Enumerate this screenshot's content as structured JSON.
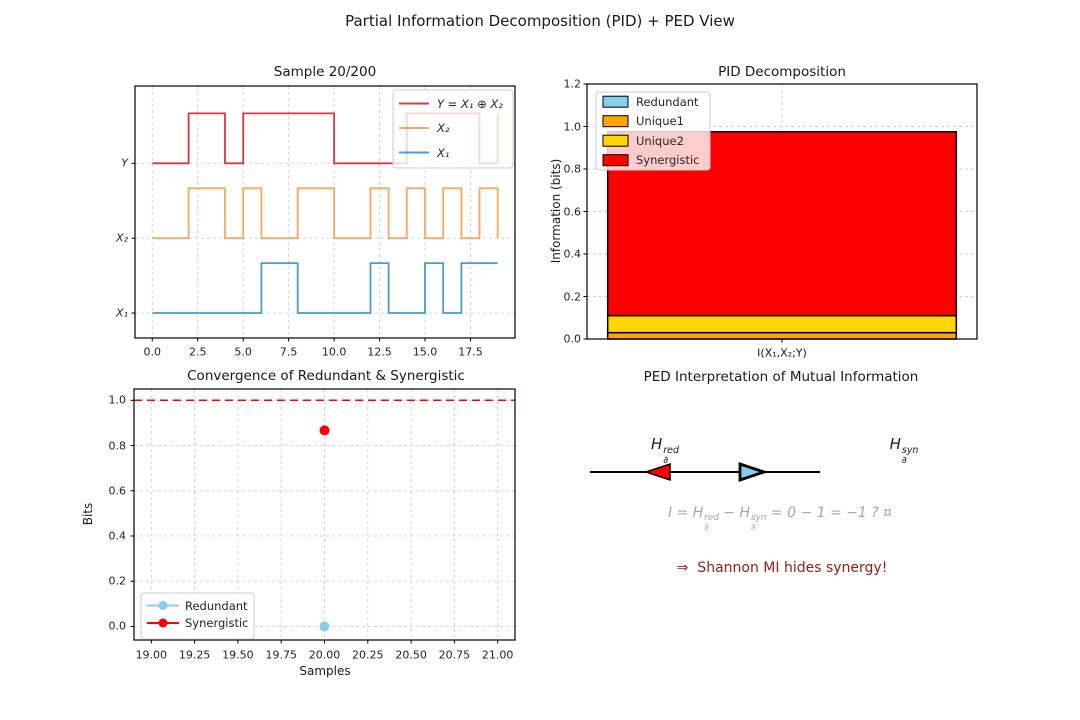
{
  "suptitle": "Partial Information Decomposition (PID) + PED View",
  "colors": {
    "x1_line": "#4c9bce",
    "x2_line": "#fba85e",
    "y_line": "#d6393f",
    "redundant": "#87ceeb",
    "unique1": "#ffa500",
    "unique2": "#ffd700",
    "synergistic": "#ff0000",
    "target_line": "#ff0000",
    "grid": "#cfcfcf",
    "axes_edge": "#000000",
    "formula_text": "#a6a6a6",
    "conclusion_text": "#9b1b1b",
    "arrow_line": "#000000"
  },
  "chart_data": [
    {
      "type": "line",
      "subtype": "step-post",
      "title": "Sample 20/200",
      "x": [
        0,
        1,
        2,
        3,
        4,
        5,
        6,
        7,
        8,
        9,
        10,
        11,
        12,
        13,
        14,
        15,
        16,
        17,
        18,
        19
      ],
      "series": [
        {
          "name": "X₁",
          "color": "#4c9bce",
          "offset": 0.0,
          "values": [
            0,
            0,
            0,
            0,
            0,
            0,
            1,
            1,
            0,
            0,
            0,
            0,
            1,
            0,
            0,
            1,
            0,
            1,
            1,
            1
          ]
        },
        {
          "name": "X₂",
          "color": "#fba85e",
          "offset": 1.5,
          "values": [
            0,
            0,
            1,
            1,
            0,
            1,
            0,
            0,
            1,
            1,
            0,
            0,
            1,
            0,
            1,
            0,
            1,
            0,
            1,
            0
          ]
        },
        {
          "name": "Y = X₁ ⊕ X₂",
          "color": "#d6393f",
          "offset": 3.0,
          "values": [
            0,
            0,
            1,
            1,
            0,
            1,
            1,
            1,
            1,
            1,
            0,
            0,
            0,
            0,
            1,
            1,
            1,
            1,
            0,
            1
          ]
        }
      ],
      "amplitude": 1.0,
      "xlim": [
        -0.95,
        19.95
      ],
      "ylim": [
        -0.5,
        4.55
      ],
      "xticks": [
        0,
        2.5,
        5,
        7.5,
        10,
        12.5,
        15,
        17.5
      ],
      "xtick_labels": [
        "0.0",
        "2.5",
        "5.0",
        "7.5",
        "10.0",
        "12.5",
        "15.0",
        "17.5"
      ],
      "ytick_positions": [
        3.0,
        1.5,
        0.0
      ],
      "ytick_labels": [
        "Y",
        "X₂",
        "X₁"
      ],
      "grid": true,
      "legend_position": "upper right"
    },
    {
      "type": "bar",
      "stacked": true,
      "title": "PID Decomposition",
      "categories": [
        "I(X₁,X₂;Y)"
      ],
      "series": [
        {
          "name": "Redundant",
          "color": "#87ceeb",
          "value": 0.0
        },
        {
          "name": "Unique1",
          "color": "#ffa500",
          "value": 0.03
        },
        {
          "name": "Unique2",
          "color": "#ffd700",
          "value": 0.08
        },
        {
          "name": "Synergistic",
          "color": "#ff0000",
          "value": 0.865
        }
      ],
      "ylabel": "Information (bits)",
      "ylim": [
        0,
        1.2
      ],
      "yticks": [
        0,
        0.2,
        0.4,
        0.6,
        0.8,
        1.0,
        1.2
      ],
      "ytick_labels": [
        "0.0",
        "0.2",
        "0.4",
        "0.6",
        "0.8",
        "1.0",
        "1.2"
      ],
      "grid": true,
      "legend_position": "upper left"
    },
    {
      "type": "scatter",
      "title": "Convergence of Redundant & Synergistic",
      "xlabel": "Samples",
      "ylabel": "Bits",
      "series": [
        {
          "name": "Redundant",
          "color": "#87ceeb",
          "points": [
            [
              20,
              0.0
            ]
          ]
        },
        {
          "name": "Synergistic",
          "color": "#ff0000",
          "points": [
            [
              20,
              0.867
            ]
          ]
        }
      ],
      "hline": {
        "y": 1.0,
        "color": "#ff0000",
        "style": "dashed"
      },
      "xlim": [
        18.9,
        21.1
      ],
      "ylim": [
        -0.06,
        1.05
      ],
      "xticks": [
        19,
        19.25,
        19.5,
        19.75,
        20,
        20.25,
        20.5,
        20.75,
        21
      ],
      "xtick_labels": [
        "19.00",
        "19.25",
        "19.50",
        "19.75",
        "20.00",
        "20.25",
        "20.50",
        "20.75",
        "21.00"
      ],
      "yticks": [
        0,
        0.2,
        0.4,
        0.6,
        0.8,
        1.0
      ],
      "ytick_labels": [
        "0.0",
        "0.2",
        "0.4",
        "0.6",
        "0.8",
        "1.0"
      ],
      "grid": true,
      "legend_position": "lower left"
    }
  ],
  "ped": {
    "title": "PED Interpretation of Mutual Information",
    "h_red": {
      "base": "H",
      "sub": "∂",
      "sup": "red"
    },
    "h_syn": {
      "base": "H",
      "sub": "∂",
      "sup": "syn"
    },
    "formula": {
      "p1": "I = H",
      "sup1": "red",
      "sub1": "∂",
      "p2": " − H",
      "sup2": "syn",
      "sub2": "∂",
      "p3": " = 0 − 1 = −1 ? ¤"
    },
    "conclusion": "⇒  Shannon MI hides synergy!"
  }
}
